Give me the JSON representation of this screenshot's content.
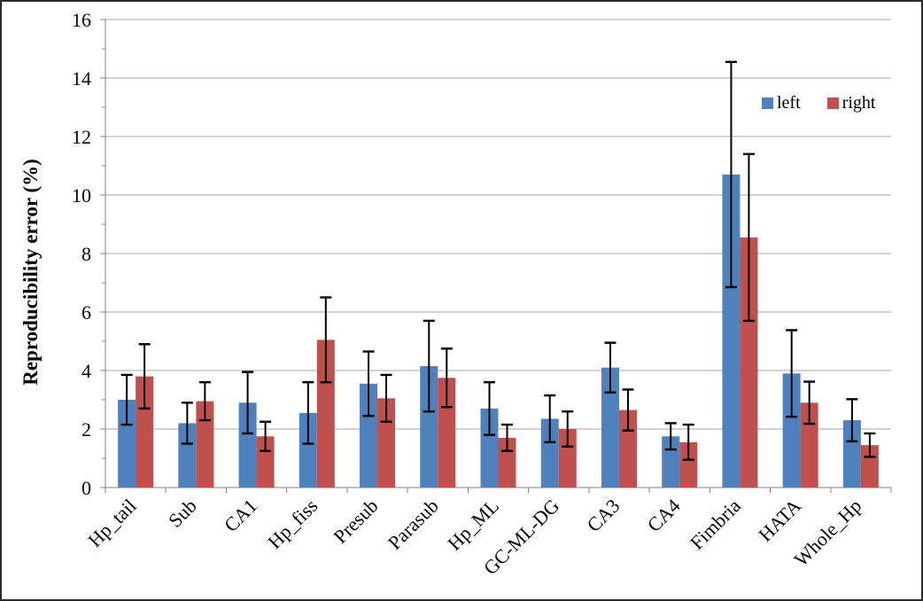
{
  "chart_data": {
    "type": "bar",
    "title": "",
    "xlabel": "",
    "ylabel": "Reproducibility error (%)",
    "ylim": [
      0,
      16
    ],
    "ytick_step": 2,
    "minor_tick_step": 1,
    "grid": true,
    "legend_position": "inside-top-right",
    "categories": [
      "Hp_tail",
      "Sub",
      "CA1",
      "Hp_fiss",
      "Presub",
      "Parasub",
      "Hp_ML",
      "GC-ML-DG",
      "CA3",
      "CA4",
      "Fimbria",
      "HATA",
      "Whole_Hp"
    ],
    "series": [
      {
        "name": "left",
        "color": "#4F81BD",
        "values": [
          3.0,
          2.2,
          2.9,
          2.55,
          3.55,
          4.15,
          2.7,
          2.35,
          4.1,
          1.75,
          10.7,
          3.9,
          2.3
        ],
        "errors": [
          0.85,
          0.7,
          1.05,
          1.05,
          1.1,
          1.55,
          0.9,
          0.8,
          0.85,
          0.45,
          3.85,
          1.48,
          0.72
        ]
      },
      {
        "name": "right",
        "color": "#C0504D",
        "values": [
          3.8,
          2.95,
          1.75,
          5.05,
          3.05,
          3.75,
          1.7,
          2.0,
          2.65,
          1.55,
          8.55,
          2.9,
          1.45
        ],
        "errors": [
          1.1,
          0.65,
          0.5,
          1.45,
          0.8,
          1.0,
          0.45,
          0.6,
          0.7,
          0.6,
          2.85,
          0.72,
          0.4
        ]
      }
    ],
    "ytick_labels": [
      "0",
      "2",
      "4",
      "6",
      "8",
      "10",
      "12",
      "14",
      "16"
    ]
  },
  "colors": {
    "gridline": "#A6A6A6",
    "axis": "#808080",
    "error_bar": "#000000",
    "background": "#FFFFFF",
    "frame_border": "#2B2B2B"
  }
}
